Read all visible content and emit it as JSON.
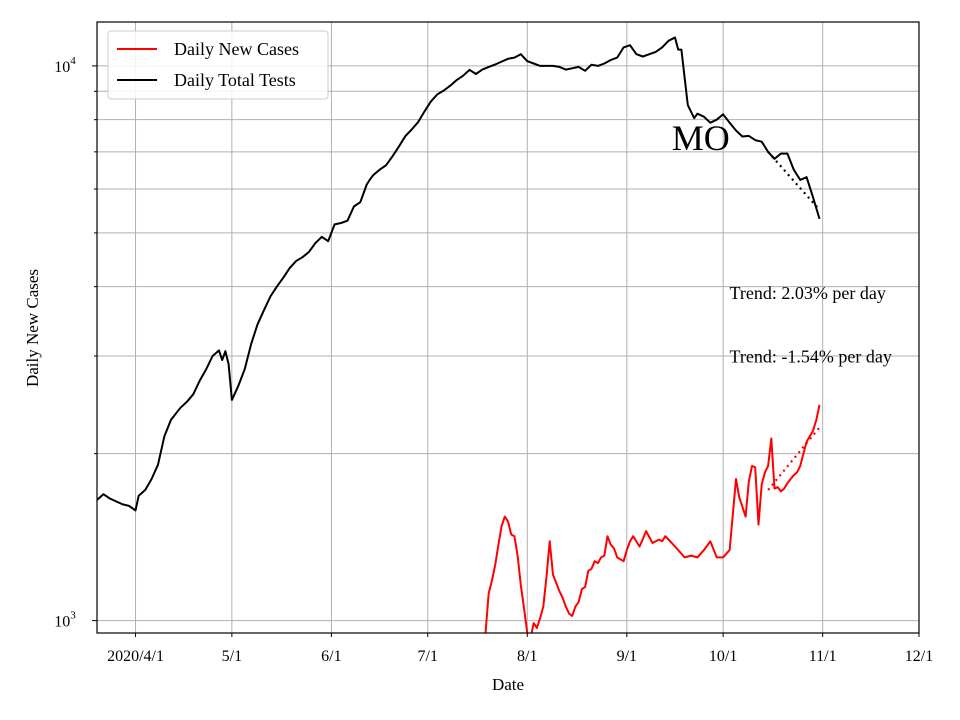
{
  "chart_data": {
    "type": "line",
    "title": "",
    "xlabel": "Date",
    "ylabel": "Daily New Cases",
    "x_scale": "date",
    "y_scale": "log",
    "xlim": [
      "2020-03-20",
      "2020-12-01"
    ],
    "ylim": [
      950,
      12000
    ],
    "grid": true,
    "legend_position": "top-left",
    "x_ticks": [
      {
        "date": "2020-04-01",
        "label": "2020/4/1"
      },
      {
        "date": "2020-05-01",
        "label": "5/1"
      },
      {
        "date": "2020-06-01",
        "label": "6/1"
      },
      {
        "date": "2020-07-01",
        "label": "7/1"
      },
      {
        "date": "2020-08-01",
        "label": "8/1"
      },
      {
        "date": "2020-09-01",
        "label": "9/1"
      },
      {
        "date": "2020-10-01",
        "label": "10/1"
      },
      {
        "date": "2020-11-01",
        "label": "11/1"
      },
      {
        "date": "2020-12-01",
        "label": "12/1"
      }
    ],
    "y_ticks_major": [
      {
        "value": 1000,
        "base": "10",
        "exp": "3"
      },
      {
        "value": 10000,
        "base": "10",
        "exp": "4"
      }
    ],
    "y_ticks_minor": [
      2000,
      3000,
      4000,
      5000,
      6000,
      7000,
      8000,
      9000
    ],
    "series": [
      {
        "name": "Daily New Cases",
        "color": "#ff0000",
        "style": "solid",
        "x": [
          "2020-07-19",
          "2020-07-20",
          "2020-07-21",
          "2020-07-22",
          "2020-07-23",
          "2020-07-24",
          "2020-07-25",
          "2020-07-26",
          "2020-07-27",
          "2020-07-28",
          "2020-07-29",
          "2020-07-30",
          "2020-07-31",
          "2020-08-01",
          "2020-08-02",
          "2020-08-03",
          "2020-08-04",
          "2020-08-05",
          "2020-08-06",
          "2020-08-07",
          "2020-08-08",
          "2020-08-09",
          "2020-08-10",
          "2020-08-11",
          "2020-08-12",
          "2020-08-13",
          "2020-08-14",
          "2020-08-15",
          "2020-08-16",
          "2020-08-17",
          "2020-08-18",
          "2020-08-19",
          "2020-08-20",
          "2020-08-21",
          "2020-08-22",
          "2020-08-23",
          "2020-08-24",
          "2020-08-25",
          "2020-08-26",
          "2020-08-27",
          "2020-08-28",
          "2020-08-29",
          "2020-08-30",
          "2020-08-31",
          "2020-09-01",
          "2020-09-02",
          "2020-09-03",
          "2020-09-05",
          "2020-09-07",
          "2020-09-09",
          "2020-09-11",
          "2020-09-12",
          "2020-09-13",
          "2020-09-15",
          "2020-09-17",
          "2020-09-19",
          "2020-09-21",
          "2020-09-23",
          "2020-09-25",
          "2020-09-27",
          "2020-09-29",
          "2020-10-01",
          "2020-10-03",
          "2020-10-05",
          "2020-10-06",
          "2020-10-08",
          "2020-10-09",
          "2020-10-10",
          "2020-10-11",
          "2020-10-12",
          "2020-10-13",
          "2020-10-14",
          "2020-10-15",
          "2020-10-16",
          "2020-10-17",
          "2020-10-18",
          "2020-10-19",
          "2020-10-20",
          "2020-10-21",
          "2020-10-22",
          "2020-10-23",
          "2020-10-24",
          "2020-10-25",
          "2020-10-26",
          "2020-10-27",
          "2020-10-28",
          "2020-10-29",
          "2020-10-30",
          "2020-10-31"
        ],
        "values": [
          950,
          1120,
          1180,
          1260,
          1370,
          1480,
          1540,
          1510,
          1430,
          1420,
          1310,
          1160,
          1050,
          950,
          930,
          990,
          970,
          1010,
          1060,
          1200,
          1390,
          1210,
          1170,
          1130,
          1100,
          1060,
          1030,
          1020,
          1060,
          1080,
          1140,
          1150,
          1230,
          1240,
          1280,
          1270,
          1300,
          1310,
          1420,
          1370,
          1350,
          1300,
          1290,
          1280,
          1340,
          1390,
          1420,
          1360,
          1450,
          1380,
          1400,
          1390,
          1420,
          1380,
          1340,
          1300,
          1310,
          1300,
          1340,
          1390,
          1300,
          1300,
          1340,
          1800,
          1670,
          1540,
          1780,
          1900,
          1890,
          1490,
          1760,
          1850,
          1900,
          2130,
          1730,
          1740,
          1710,
          1730,
          1770,
          1800,
          1830,
          1850,
          1900,
          2000,
          2100,
          2150,
          2200,
          2300,
          2450
        ]
      },
      {
        "name": "Daily Total Tests",
        "color": "#000000",
        "style": "solid",
        "x": [
          "2020-03-20",
          "2020-03-22",
          "2020-03-24",
          "2020-03-26",
          "2020-03-28",
          "2020-03-30",
          "2020-04-01",
          "2020-04-02",
          "2020-04-04",
          "2020-04-06",
          "2020-04-08",
          "2020-04-10",
          "2020-04-12",
          "2020-04-14",
          "2020-04-15",
          "2020-04-17",
          "2020-04-19",
          "2020-04-21",
          "2020-04-23",
          "2020-04-25",
          "2020-04-27",
          "2020-04-28",
          "2020-04-29",
          "2020-04-30",
          "2020-05-01",
          "2020-05-03",
          "2020-05-05",
          "2020-05-07",
          "2020-05-09",
          "2020-05-11",
          "2020-05-13",
          "2020-05-15",
          "2020-05-17",
          "2020-05-19",
          "2020-05-21",
          "2020-05-23",
          "2020-05-25",
          "2020-05-27",
          "2020-05-29",
          "2020-05-31",
          "2020-06-02",
          "2020-06-04",
          "2020-06-06",
          "2020-06-08",
          "2020-06-10",
          "2020-06-12",
          "2020-06-13",
          "2020-06-14",
          "2020-06-16",
          "2020-06-18",
          "2020-06-20",
          "2020-06-22",
          "2020-06-24",
          "2020-06-26",
          "2020-06-28",
          "2020-06-30",
          "2020-07-02",
          "2020-07-04",
          "2020-07-06",
          "2020-07-08",
          "2020-07-10",
          "2020-07-12",
          "2020-07-14",
          "2020-07-16",
          "2020-07-18",
          "2020-07-20",
          "2020-07-22",
          "2020-07-24",
          "2020-07-26",
          "2020-07-28",
          "2020-07-30",
          "2020-08-01",
          "2020-08-03",
          "2020-08-05",
          "2020-08-07",
          "2020-08-09",
          "2020-08-11",
          "2020-08-13",
          "2020-08-15",
          "2020-08-17",
          "2020-08-19",
          "2020-08-21",
          "2020-08-23",
          "2020-08-25",
          "2020-08-27",
          "2020-08-29",
          "2020-08-31",
          "2020-09-02",
          "2020-09-04",
          "2020-09-06",
          "2020-09-08",
          "2020-09-10",
          "2020-09-12",
          "2020-09-14",
          "2020-09-16",
          "2020-09-17",
          "2020-09-18",
          "2020-09-20",
          "2020-09-22",
          "2020-09-23",
          "2020-09-25",
          "2020-09-27",
          "2020-09-29",
          "2020-10-01",
          "2020-10-03",
          "2020-10-05",
          "2020-10-07",
          "2020-10-09",
          "2020-10-11",
          "2020-10-13",
          "2020-10-15",
          "2020-10-17",
          "2020-10-19",
          "2020-10-21",
          "2020-10-23",
          "2020-10-25",
          "2020-10-27",
          "2020-10-29",
          "2020-10-31"
        ],
        "values": [
          1650,
          1690,
          1660,
          1640,
          1620,
          1610,
          1580,
          1680,
          1720,
          1800,
          1910,
          2150,
          2300,
          2380,
          2420,
          2480,
          2560,
          2710,
          2840,
          3000,
          3070,
          2950,
          3060,
          2900,
          2500,
          2650,
          2840,
          3150,
          3420,
          3630,
          3840,
          4000,
          4150,
          4320,
          4450,
          4520,
          4620,
          4790,
          4920,
          4830,
          5180,
          5210,
          5260,
          5580,
          5680,
          6110,
          6240,
          6350,
          6500,
          6620,
          6870,
          7150,
          7470,
          7680,
          7920,
          8280,
          8630,
          8890,
          9030,
          9210,
          9430,
          9600,
          9840,
          9670,
          9850,
          9960,
          10060,
          10180,
          10300,
          10350,
          10500,
          10200,
          10100,
          10000,
          10000,
          10000,
          9960,
          9850,
          9900,
          9960,
          9800,
          10050,
          10000,
          10100,
          10250,
          10350,
          10800,
          10900,
          10500,
          10400,
          10500,
          10600,
          10800,
          11100,
          11250,
          10700,
          10700,
          8500,
          8050,
          8200,
          8100,
          7900,
          8000,
          8180,
          7900,
          7650,
          7460,
          7480,
          7350,
          7300,
          7000,
          6800,
          6950,
          6950,
          6500,
          6230,
          6300,
          5800,
          5300
        ]
      }
    ],
    "trend_lines": [
      {
        "color": "#ff0000",
        "style": "dotted",
        "x": [
          "2020-10-15",
          "2020-10-31"
        ],
        "values": [
          1720,
          2230
        ]
      },
      {
        "color": "#000000",
        "style": "dotted",
        "x": [
          "2020-10-15",
          "2020-10-31"
        ],
        "values": [
          7000,
          5500
        ]
      }
    ],
    "annotations": [
      {
        "text": "MO",
        "date": "2020-09-15",
        "value": 7060
      },
      {
        "text": "Trend: 2.03% per day",
        "date": "2020-10-03",
        "value": 3800
      },
      {
        "text": "Trend: -1.54% per day",
        "date": "2020-10-03",
        "value": 2920
      }
    ]
  }
}
